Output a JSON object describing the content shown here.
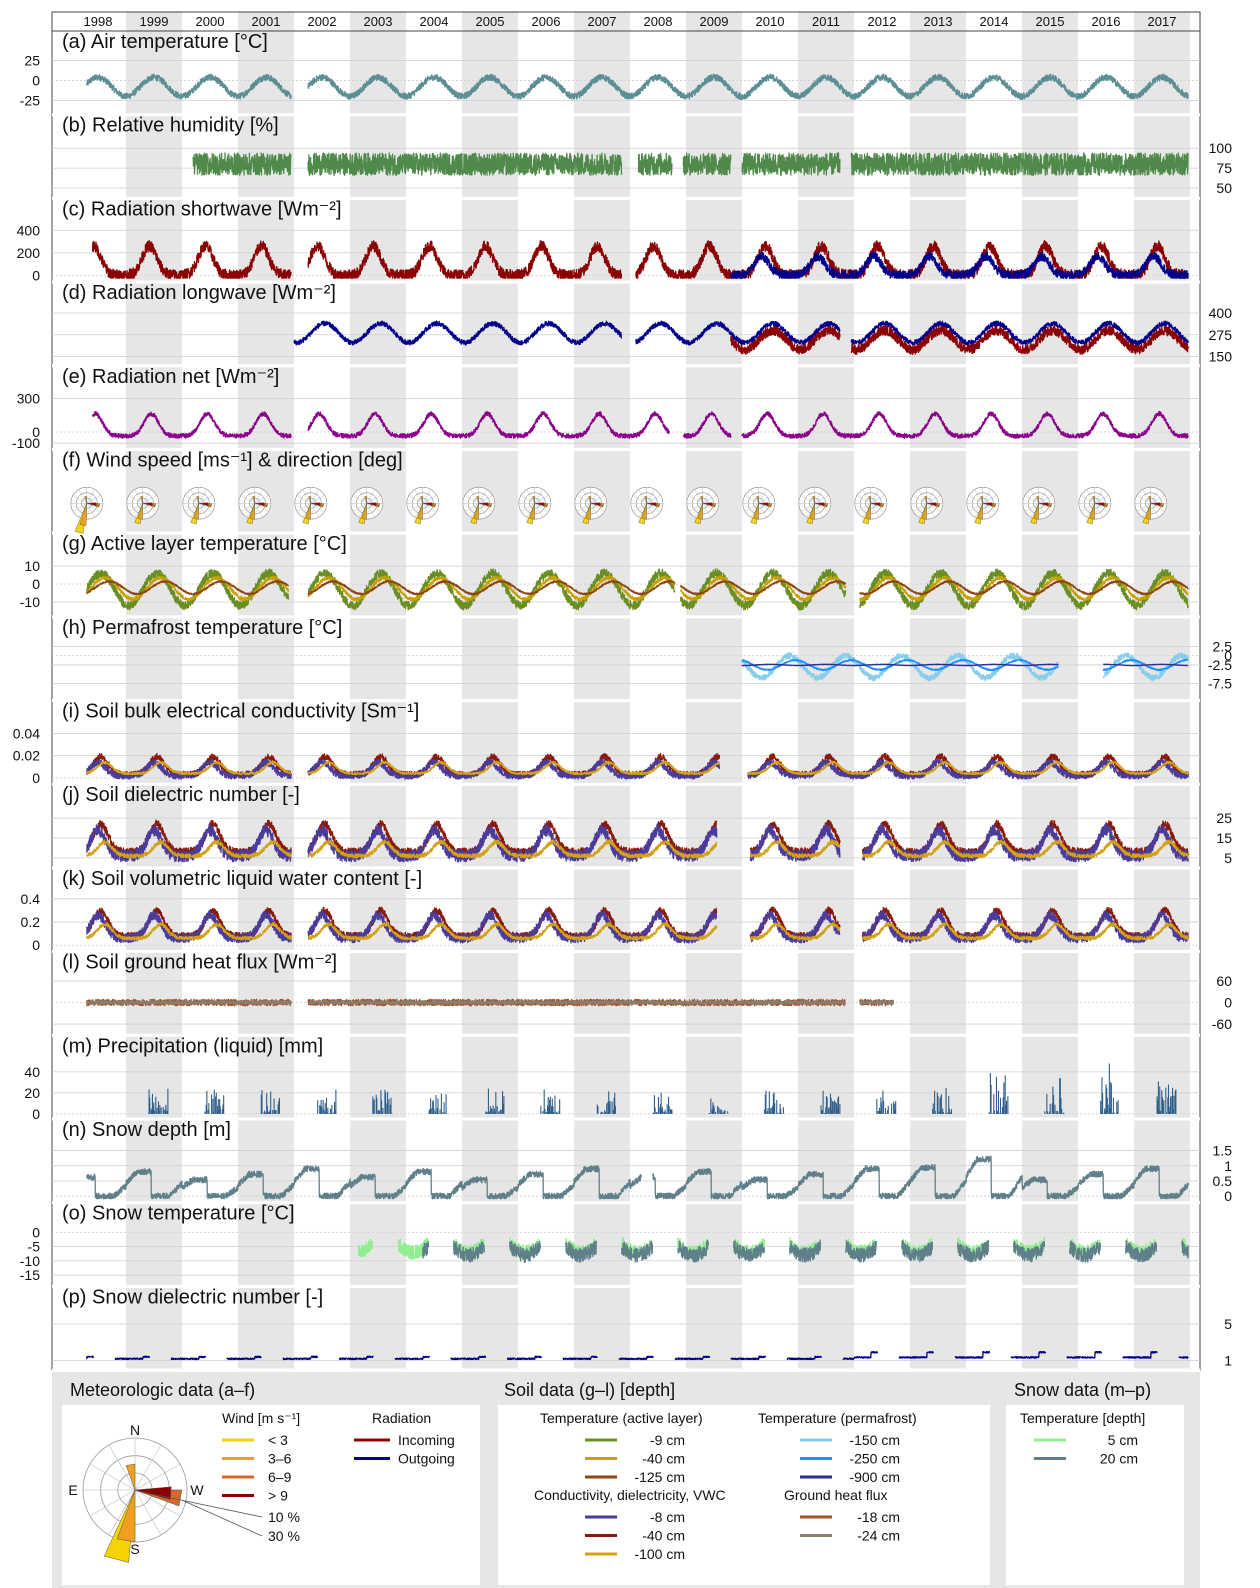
{
  "chart_data": {
    "type": "line",
    "x_axis": {
      "unit": "year",
      "range": [
        1998,
        2018
      ],
      "years": [
        "1998",
        "1999",
        "2000",
        "2001",
        "2002",
        "2003",
        "2004",
        "2005",
        "2006",
        "2007",
        "2008",
        "2009",
        "2010",
        "2011",
        "2012",
        "2013",
        "2014",
        "2015",
        "2016",
        "2017"
      ],
      "shaded_years": [
        "1999",
        "2001",
        "2003",
        "2005",
        "2007",
        "2009",
        "2011",
        "2013",
        "2015",
        "2017"
      ]
    },
    "colors": {
      "air_temp": "#5b8f94",
      "humidity": "#4f8a4b",
      "incoming": "#8b0000",
      "outgoing": "#00008b",
      "net": "#8b008b",
      "active_9": "#6b8e23",
      "active_40": "#c8a000",
      "active_125": "#8b4513",
      "perma_150": "#87ceeb",
      "perma_250": "#1e90ff",
      "perma_900": "#2e2e8b",
      "cond_8": "#4b3c9b",
      "cond_40": "#8b1a0a",
      "cond_100": "#d4a017",
      "heat_18": "#a0522d",
      "heat_24": "#8b7d6b",
      "precip": "#2f5f8a",
      "snow_depth": "#5f7f8a",
      "snow_5": "#90ee90",
      "snow_20": "#5f7f8a",
      "snow_diel": "#00008b",
      "wind_lt3": "#f5d300",
      "wind_3_6": "#f0a020",
      "wind_6_9": "#d2692a",
      "wind_gt9": "#8b0000"
    },
    "panels": [
      {
        "id": "a",
        "title": "(a) Air temperature [°C]",
        "ticks": [
          "25",
          "0",
          "-25"
        ],
        "tick_values": [
          25,
          0,
          -25
        ],
        "axis_side": "left",
        "ylim": [
          -38,
          32
        ],
        "gaps": [
          [
            2001.95,
            2002.25
          ]
        ],
        "series": [
          {
            "ref": "air_temp",
            "start": 1998.3,
            "end": 2017.97,
            "mean": -8,
            "amp": 12,
            "peak": 0.5,
            "shape": "sin",
            "noise": 4
          }
        ]
      },
      {
        "id": "b",
        "title": "(b) Relative humidity [%]",
        "ticks": [
          "100",
          "75",
          "50"
        ],
        "tick_values": [
          100,
          75,
          50
        ],
        "axis_side": "right",
        "ylim": [
          42,
          112
        ],
        "gaps": [
          [
            2001.95,
            2002.25
          ],
          [
            2007.85,
            2008.15
          ],
          [
            2008.75,
            2008.95
          ],
          [
            2009.8,
            2010.0
          ],
          [
            2011.75,
            2011.95
          ]
        ],
        "series": [
          {
            "ref": "humidity",
            "start": 2000.2,
            "end": 2017.97,
            "mean": 80,
            "amp": 0,
            "peak": 0.5,
            "shape": "sin",
            "noise": 14
          }
        ]
      },
      {
        "id": "c",
        "title": "(c) Radiation shortwave [Wm⁻²]",
        "ticks": [
          "400",
          "200",
          "0"
        ],
        "tick_values": [
          400,
          200,
          0
        ],
        "axis_side": "left",
        "ylim": [
          -25,
          470
        ],
        "gaps": [
          [
            2001.95,
            2002.25
          ],
          [
            2007.85,
            2008.1
          ]
        ],
        "series": [
          {
            "ref": "incoming",
            "start": 1998.4,
            "end": 2017.97,
            "mean": 0,
            "amp": 260,
            "peak": 0.42,
            "shape": "bump",
            "noise": 50
          },
          {
            "ref": "outgoing",
            "start": 2009.8,
            "end": 2017.97,
            "mean": 0,
            "amp": 170,
            "peak": 0.35,
            "shape": "bump",
            "noise": 40
          }
        ]
      },
      {
        "id": "d",
        "title": "(d) Radiation longwave [Wm⁻²]",
        "ticks": [
          "400",
          "275",
          "150"
        ],
        "tick_values": [
          400,
          275,
          150
        ],
        "axis_side": "right",
        "ylim": [
          120,
          440
        ],
        "gaps": [
          [
            2007.85,
            2008.1
          ],
          [
            2011.75,
            2011.95
          ]
        ],
        "series": [
          {
            "ref": "incoming",
            "start": 2009.8,
            "end": 2017.97,
            "mean": 245,
            "amp": 55,
            "peak": 0.55,
            "shape": "sin",
            "noise": 28
          },
          {
            "ref": "outgoing",
            "start": 2002.0,
            "end": 2017.97,
            "mean": 285,
            "amp": 55,
            "peak": 0.55,
            "shape": "sin",
            "noise": 14
          }
        ]
      },
      {
        "id": "e",
        "title": "(e) Radiation net [Wm⁻²]",
        "ticks": [
          "300",
          "0",
          "-100"
        ],
        "tick_values": [
          300,
          0,
          -100
        ],
        "axis_side": "left",
        "ylim": [
          -120,
          380
        ],
        "gaps": [
          [
            2001.95,
            2002.25
          ],
          [
            2008.7,
            2008.95
          ],
          [
            2009.8,
            2010.0
          ]
        ],
        "series": [
          {
            "ref": "net",
            "start": 1998.4,
            "end": 2017.97,
            "mean": -35,
            "amp": 200,
            "peak": 0.45,
            "shape": "bump",
            "noise": 20
          }
        ]
      },
      {
        "id": "f",
        "title": "(f) Wind speed [ms⁻¹] & direction [deg]",
        "ticks": [],
        "tick_values": [],
        "axis_side": "left",
        "ylim": [
          0,
          1
        ],
        "gaps": [],
        "series": []
      },
      {
        "id": "g",
        "title": "(g) Active layer temperature [°C]",
        "ticks": [
          "10",
          "0",
          "-10"
        ],
        "tick_values": [
          10,
          0,
          -10
        ],
        "axis_side": "left",
        "ylim": [
          -16,
          15
        ],
        "gaps": [
          [
            2001.9,
            2002.25
          ],
          [
            2008.8,
            2008.9
          ],
          [
            2011.85,
            2012.1
          ]
        ],
        "series": [
          {
            "ref": "active_9",
            "start": 1998.3,
            "end": 2017.97,
            "mean": -3,
            "amp": 9,
            "peak": 0.55,
            "shape": "sin",
            "noise": 2.5
          },
          {
            "ref": "active_40",
            "start": 1998.3,
            "end": 2017.97,
            "mean": -2.5,
            "amp": 6,
            "peak": 0.62,
            "shape": "sin",
            "noise": 1
          },
          {
            "ref": "active_125",
            "start": 1998.3,
            "end": 2017.97,
            "mean": -2,
            "amp": 3.5,
            "peak": 0.7,
            "shape": "sin",
            "noise": 0.5
          }
        ]
      },
      {
        "id": "h",
        "title": "(h) Permafrost temperature [°C]",
        "ticks": [
          "2.5",
          "0",
          "-2.5",
          "-7.5"
        ],
        "tick_values": [
          2.5,
          0,
          -2.5,
          -7.5
        ],
        "axis_side": "right",
        "ylim": [
          -11,
          4
        ],
        "gaps": [
          [
            2015.65,
            2016.45
          ]
        ],
        "series": [
          {
            "ref": "perma_150",
            "start": 2010.0,
            "end": 2017.97,
            "mean": -3,
            "amp": 3,
            "peak": 0.85,
            "shape": "sin",
            "noise": 0.8
          },
          {
            "ref": "perma_250",
            "start": 2010.0,
            "end": 2017.97,
            "mean": -2.5,
            "amp": 1.3,
            "peak": 0.95,
            "shape": "sin",
            "noise": 0.2
          },
          {
            "ref": "perma_900",
            "start": 2010.0,
            "end": 2017.97,
            "mean": -2.5,
            "amp": 0.15,
            "peak": 0.5,
            "shape": "sin",
            "noise": 0.05
          }
        ]
      },
      {
        "id": "i",
        "title": "(i) Soil bulk electrical conductivity [Sm⁻¹]",
        "ticks": [
          "0.04",
          "0.02",
          "0"
        ],
        "tick_values": [
          0.04,
          0.02,
          0
        ],
        "axis_side": "left",
        "ylim": [
          -0.002,
          0.048
        ],
        "gaps": [
          [
            2001.95,
            2002.25
          ],
          [
            2009.6,
            2010.1
          ]
        ],
        "series": [
          {
            "ref": "cond_40",
            "start": 1998.3,
            "end": 2017.97,
            "mean": 0.003,
            "amp": 0.016,
            "peak": 0.55,
            "shape": "bump",
            "noise": 0.003
          },
          {
            "ref": "cond_8",
            "start": 1998.3,
            "end": 2017.97,
            "mean": 0.002,
            "amp": 0.012,
            "peak": 0.5,
            "shape": "bump",
            "noise": 0.003
          },
          {
            "ref": "cond_100",
            "start": 1998.3,
            "end": 2017.97,
            "mean": 0.004,
            "amp": 0.01,
            "peak": 0.62,
            "shape": "bump",
            "noise": 0.001
          }
        ]
      },
      {
        "id": "j",
        "title": "(j) Soil dielectric number [-]",
        "ticks": [
          "25",
          "15",
          "5"
        ],
        "tick_values": [
          25,
          15,
          5
        ],
        "axis_side": "right",
        "ylim": [
          2,
          30
        ],
        "gaps": [
          [
            2001.95,
            2002.25
          ],
          [
            2009.55,
            2010.15
          ],
          [
            2011.75,
            2012.15
          ]
        ],
        "series": [
          {
            "ref": "cond_40",
            "start": 1998.3,
            "end": 2017.97,
            "mean": 8,
            "amp": 14,
            "peak": 0.55,
            "shape": "bump",
            "noise": 2
          },
          {
            "ref": "cond_8",
            "start": 1998.3,
            "end": 2017.97,
            "mean": 6,
            "amp": 13,
            "peak": 0.5,
            "shape": "bump",
            "noise": 3
          },
          {
            "ref": "cond_100",
            "start": 1998.3,
            "end": 2017.97,
            "mean": 6,
            "amp": 7,
            "peak": 0.62,
            "shape": "bump",
            "noise": 1
          }
        ]
      },
      {
        "id": "k",
        "title": "(k) Soil volumetric liquid water content [-]",
        "ticks": [
          "0.4",
          "0.2",
          "0"
        ],
        "tick_values": [
          0.4,
          0.2,
          0
        ],
        "axis_side": "left",
        "ylim": [
          -0.02,
          0.46
        ],
        "gaps": [
          [
            2001.95,
            2002.25
          ],
          [
            2009.55,
            2010.15
          ],
          [
            2011.75,
            2012.15
          ]
        ],
        "series": [
          {
            "ref": "cond_40",
            "start": 1998.3,
            "end": 2017.97,
            "mean": 0.08,
            "amp": 0.22,
            "peak": 0.55,
            "shape": "bump",
            "noise": 0.03
          },
          {
            "ref": "cond_8",
            "start": 1998.3,
            "end": 2017.97,
            "mean": 0.06,
            "amp": 0.2,
            "peak": 0.5,
            "shape": "bump",
            "noise": 0.04
          },
          {
            "ref": "cond_100",
            "start": 1998.3,
            "end": 2017.97,
            "mean": 0.06,
            "amp": 0.12,
            "peak": 0.62,
            "shape": "bump",
            "noise": 0.015
          }
        ]
      },
      {
        "id": "l",
        "title": "(l) Soil ground heat flux [Wm⁻²]",
        "ticks": [
          "60",
          "0",
          "-60"
        ],
        "tick_values": [
          60,
          0,
          -60
        ],
        "axis_side": "right",
        "ylim": [
          -80,
          75
        ],
        "gaps": [
          [
            2001.95,
            2002.25
          ],
          [
            2011.85,
            2012.1
          ]
        ],
        "series": [
          {
            "ref": "heat_18",
            "start": 1998.3,
            "end": 2012.7,
            "mean": 0,
            "amp": 0,
            "peak": 0.5,
            "shape": "sin",
            "noise": 9
          },
          {
            "ref": "heat_24",
            "start": 1998.3,
            "end": 2012.7,
            "mean": 0,
            "amp": 0,
            "peak": 0.5,
            "shape": "sin",
            "noise": 5
          }
        ]
      },
      {
        "id": "m",
        "title": "(m) Precipitation (liquid) [mm]",
        "ticks": [
          "40",
          "20",
          "0"
        ],
        "tick_values": [
          40,
          20,
          0
        ],
        "axis_side": "left",
        "ylim": [
          -1,
          52
        ],
        "gaps": [],
        "series": [
          {
            "ref": "precip",
            "start": 1999.4,
            "end": 2017.97,
            "mean": 0,
            "amp": 0,
            "peak": 0.55,
            "shape": "bars",
            "noise": 0
          }
        ]
      },
      {
        "id": "n",
        "title": "(n) Snow depth [m]",
        "ticks": [
          "1.5",
          "1",
          "0.5",
          "0"
        ],
        "tick_values": [
          1.5,
          1,
          0.5,
          0
        ],
        "axis_side": "right",
        "ylim": [
          -0.08,
          1.75
        ],
        "gaps": [
          [
            2008.2,
            2008.4
          ]
        ],
        "series": [
          {
            "ref": "snow_depth",
            "start": 1998.3,
            "end": 2017.97,
            "mean": 0,
            "amp": 0.9,
            "peak": 0.1,
            "shape": "snow",
            "noise": 0.1
          }
        ]
      },
      {
        "id": "o",
        "title": "(o) Snow temperature [°C]",
        "ticks": [
          "0",
          "-5",
          "-10",
          "-15"
        ],
        "tick_values": [
          0,
          -5,
          -10,
          -15
        ],
        "axis_side": "left",
        "ylim": [
          -17.5,
          2
        ],
        "gaps": [],
        "series": [
          {
            "ref": "snow_5",
            "start": 2003.15,
            "end": 2017.97,
            "mean": -4,
            "amp": 0,
            "peak": 0.1,
            "shape": "snowt",
            "noise": 2.5
          },
          {
            "ref": "snow_20",
            "start": 2004.3,
            "end": 2017.97,
            "mean": -5,
            "amp": 0,
            "peak": 0.1,
            "shape": "snowt",
            "noise": 2.5
          }
        ]
      },
      {
        "id": "p",
        "title": "(p) Snow dielectric number [-]",
        "ticks": [
          "5",
          "1"
        ],
        "tick_values": [
          5,
          1
        ],
        "axis_side": "right",
        "ylim": [
          0.4,
          6.5
        ],
        "gaps": [],
        "series": [
          {
            "ref": "snow_diel",
            "start": 1998.3,
            "end": 2017.97,
            "mean": 1.1,
            "amp": 0,
            "peak": 0.1,
            "shape": "snowd",
            "noise": 0.08
          }
        ]
      }
    ],
    "wind_roses_per_year": 20
  },
  "legend": {
    "meteo": {
      "title": "Meteorologic data (a–f)",
      "wind_title": "Wind [m s⁻¹]",
      "wind_classes": [
        {
          "label": "< 3",
          "color": "#f5d300"
        },
        {
          "label": "3–6",
          "color": "#f0a020"
        },
        {
          "label": "6–9",
          "color": "#d2692a"
        },
        {
          "label": "> 9",
          "color": "#8b0000"
        }
      ],
      "rose_pct": [
        "10 %",
        "30 %"
      ],
      "compass": [
        "N",
        "E",
        "S",
        "W"
      ],
      "radiation_title": "Radiation",
      "radiation_items": [
        {
          "label": "Incoming",
          "color": "#8b0000"
        },
        {
          "label": "Outgoing",
          "color": "#00008b"
        }
      ]
    },
    "soil": {
      "title": "Soil data (g–l) [depth]",
      "active_title": "Temperature (active layer)",
      "active_items": [
        {
          "label": "-9 cm",
          "color": "#6b8e23"
        },
        {
          "label": "-40 cm",
          "color": "#c8a000"
        },
        {
          "label": "-125 cm",
          "color": "#8b4513"
        }
      ],
      "perma_title": "Temperature (permafrost)",
      "perma_items": [
        {
          "label": "-150 cm",
          "color": "#87ceeb"
        },
        {
          "label": "-250 cm",
          "color": "#1e90ff"
        },
        {
          "label": "-900 cm",
          "color": "#2e2e8b"
        }
      ],
      "cond_title": "Conductivity,  dielectricity, VWC",
      "cond_items": [
        {
          "label": "-8 cm",
          "color": "#4b3c9b"
        },
        {
          "label": "-40 cm",
          "color": "#8b1a0a"
        },
        {
          "label": "-100 cm",
          "color": "#d4a017"
        }
      ],
      "heat_title": "Ground heat flux",
      "heat_items": [
        {
          "label": "-18 cm",
          "color": "#a0522d"
        },
        {
          "label": "-24 cm",
          "color": "#8b7d6b"
        }
      ]
    },
    "snow": {
      "title": "Snow data (m–p)",
      "temp_title": "Temperature [depth]",
      "temp_items": [
        {
          "label": "5  cm",
          "color": "#90ee90"
        },
        {
          "label": "20 cm",
          "color": "#5f7f8a"
        }
      ]
    }
  }
}
